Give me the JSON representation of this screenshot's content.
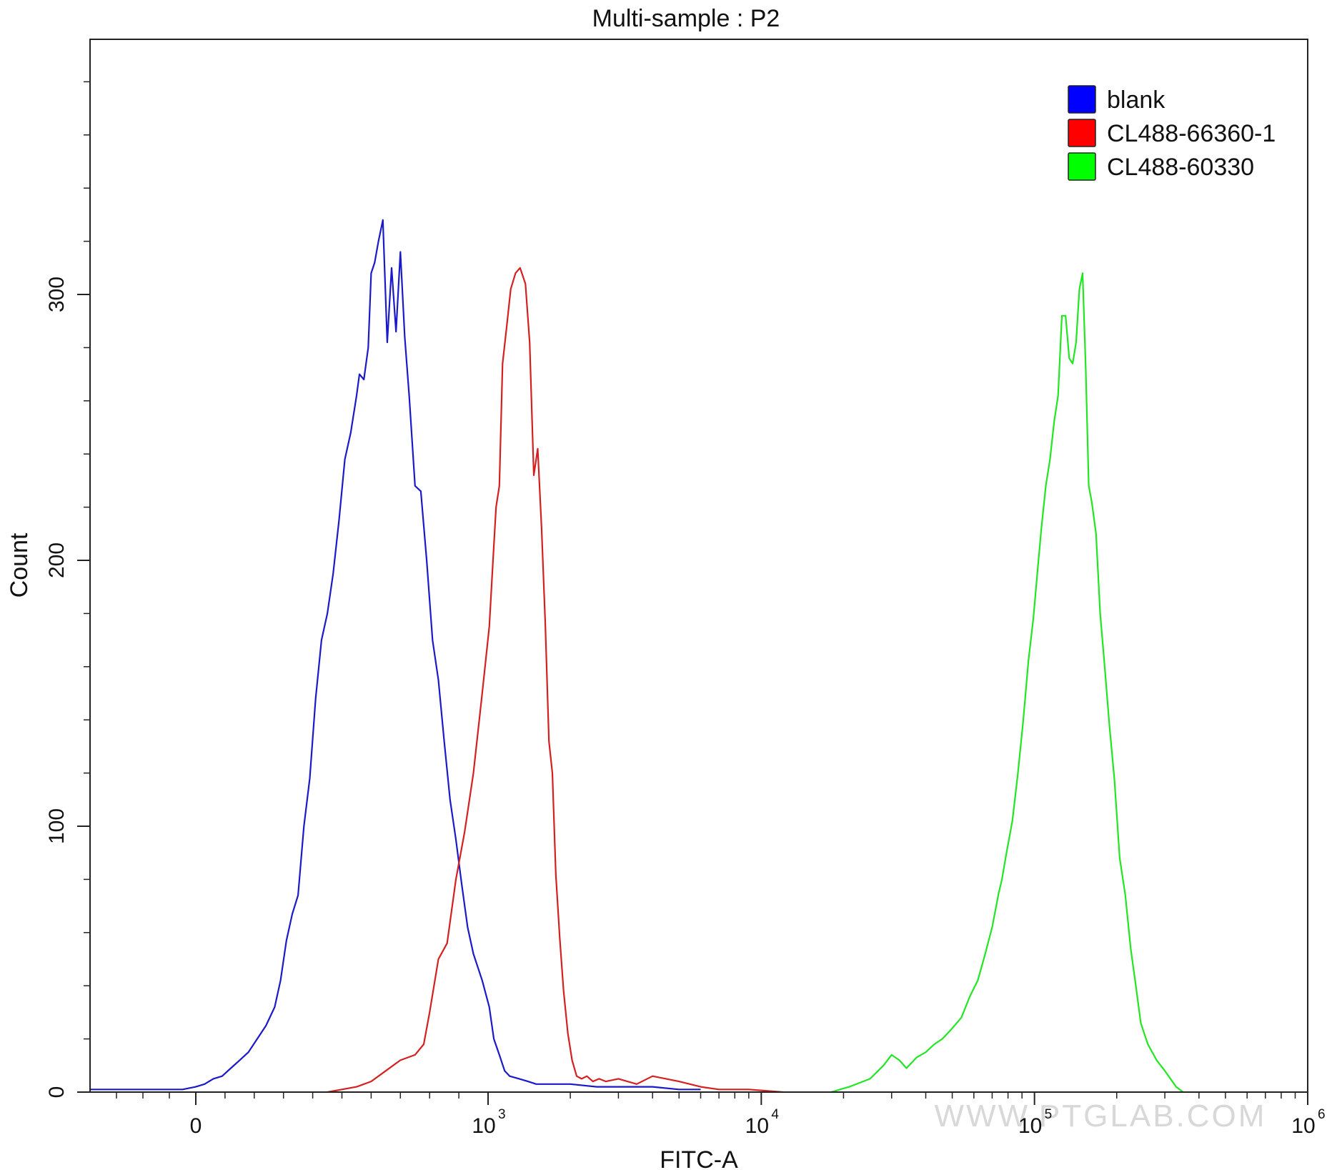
{
  "chart_data": {
    "type": "line",
    "title": "Multi-sample : P2",
    "xlabel": "FITC-A",
    "ylabel": "Count",
    "x_scale": "biexponential",
    "xlim": [
      -400,
      1000000
    ],
    "ylim": [
      0,
      380
    ],
    "grid": false,
    "legend_position": "top-right",
    "x_ticks": [
      {
        "value": 0,
        "label": "0",
        "sup": ""
      },
      {
        "value": 1000,
        "label": "10",
        "sup": "3"
      },
      {
        "value": 10000,
        "label": "10",
        "sup": "4"
      },
      {
        "value": 100000,
        "label": "10",
        "sup": "5"
      },
      {
        "value": 1000000,
        "label": "10",
        "sup": "6"
      }
    ],
    "y_ticks": [
      {
        "value": 0,
        "label": "0"
      },
      {
        "value": 100,
        "label": "100"
      },
      {
        "value": 200,
        "label": "200"
      },
      {
        "value": 300,
        "label": "300"
      }
    ],
    "series": [
      {
        "name": "blank",
        "color": "#1a1ac8",
        "legend_color": "#0000ff",
        "x": [
          -400,
          -300,
          -200,
          -100,
          -50,
          0,
          30,
          60,
          90,
          120,
          150,
          180,
          210,
          240,
          270,
          290,
          310,
          330,
          350,
          370,
          390,
          410,
          430,
          450,
          470,
          490,
          510,
          530,
          550,
          560,
          575,
          590,
          600,
          612,
          625,
          640,
          655,
          670,
          685,
          700,
          715,
          730,
          750,
          770,
          790,
          810,
          830,
          850,
          870,
          890,
          910,
          930,
          950,
          980,
          1010,
          1050,
          1100,
          1150,
          1200,
          1300,
          1400,
          1500,
          1700,
          2000,
          2500,
          3000,
          3500,
          4000,
          5000,
          6000
        ],
        "y": [
          1,
          1,
          1,
          1,
          1,
          2,
          3,
          5,
          6,
          9,
          12,
          15,
          20,
          25,
          32,
          42,
          57,
          67,
          74,
          100,
          118,
          148,
          170,
          180,
          195,
          215,
          238,
          248,
          262,
          270,
          268,
          280,
          308,
          312,
          320,
          328,
          282,
          310,
          286,
          316,
          284,
          262,
          228,
          226,
          200,
          170,
          155,
          132,
          110,
          95,
          78,
          62,
          52,
          42,
          32,
          20,
          14,
          8,
          6,
          5,
          4,
          3,
          3,
          3,
          2,
          2,
          2,
          2,
          1,
          1
        ]
      },
      {
        "name": "CL488-66360-1",
        "color": "#d42020",
        "legend_color": "#ff0000",
        "x": [
          450,
          500,
          550,
          600,
          650,
          700,
          750,
          780,
          800,
          830,
          860,
          890,
          920,
          950,
          980,
          1010,
          1040,
          1070,
          1100,
          1130,
          1170,
          1210,
          1260,
          1310,
          1370,
          1420,
          1470,
          1520,
          1570,
          1620,
          1670,
          1720,
          1770,
          1830,
          1890,
          1960,
          2030,
          2110,
          2200,
          2300,
          2420,
          2550,
          2700,
          3000,
          3500,
          4000,
          5000,
          6000,
          7000,
          9000,
          12000
        ],
        "y": [
          0,
          1,
          2,
          4,
          8,
          12,
          14,
          18,
          30,
          50,
          56,
          80,
          98,
          120,
          150,
          175,
          198,
          220,
          228,
          274,
          288,
          302,
          308,
          310,
          304,
          282,
          232,
          242,
          212,
          176,
          132,
          120,
          82,
          58,
          38,
          22,
          12,
          6,
          5,
          6,
          4,
          5,
          4,
          5,
          3,
          6,
          4,
          2,
          1,
          1,
          0
        ]
      },
      {
        "name": "CL488-60330",
        "color": "#22e622",
        "legend_color": "#00ff00",
        "x": [
          18000,
          21000,
          25000,
          28000,
          30000,
          32000,
          34000,
          37000,
          40000,
          43000,
          46000,
          50000,
          54000,
          58000,
          62000,
          66000,
          70000,
          74000,
          76000,
          79000,
          83000,
          87000,
          91000,
          95000,
          99000,
          103000,
          106000,
          110000,
          114000,
          118000,
          122000,
          126000,
          130000,
          134000,
          138000,
          142000,
          146000,
          150000,
          154000,
          158000,
          162000,
          168000,
          174000,
          180000,
          188000,
          196000,
          205000,
          215000,
          225000,
          235000,
          245000,
          260000,
          280000,
          300000,
          330000,
          350000
        ],
        "y": [
          0,
          2,
          5,
          10,
          14,
          12,
          9,
          13,
          15,
          18,
          20,
          24,
          28,
          36,
          42,
          52,
          62,
          75,
          80,
          90,
          102,
          120,
          140,
          162,
          178,
          198,
          212,
          228,
          238,
          252,
          262,
          292,
          292,
          276,
          274,
          282,
          302,
          308,
          272,
          228,
          222,
          210,
          180,
          162,
          138,
          118,
          88,
          74,
          54,
          40,
          26,
          18,
          12,
          8,
          2,
          0
        ]
      }
    ]
  }
}
